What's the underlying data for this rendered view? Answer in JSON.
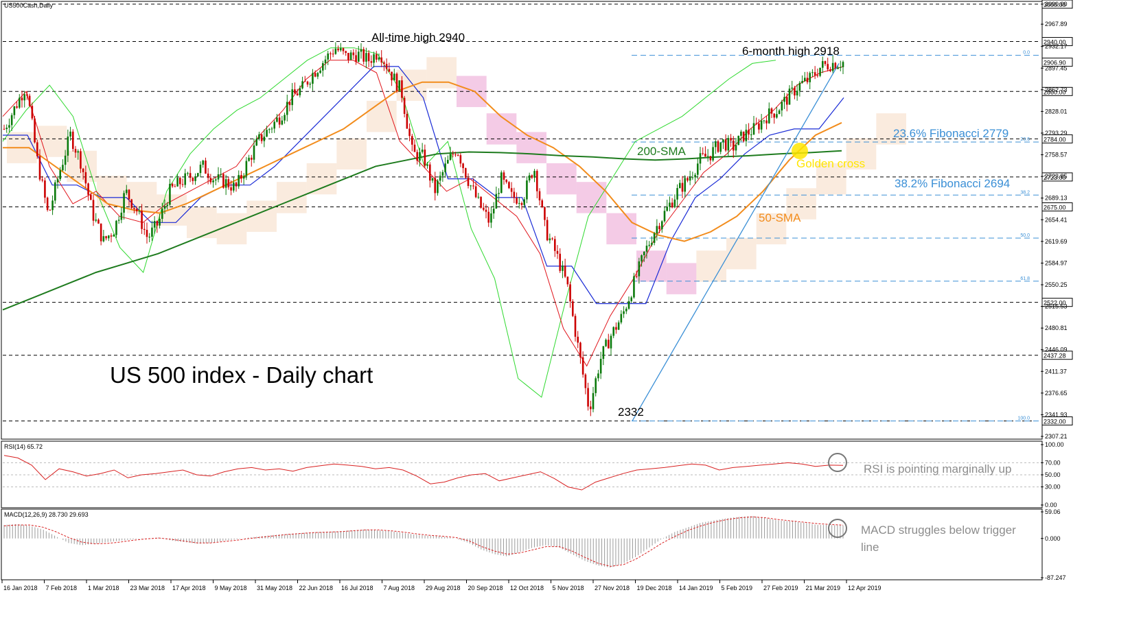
{
  "symbol_label": "US500Cash,Daily",
  "chart_title": "US 500 index - Daily chart",
  "annotations": {
    "all_time_high": "All-time high 2940",
    "six_month_high": "6-month high 2918",
    "low": "2332",
    "fib_236": "23.6% Fibonacci 2779",
    "fib_382": "38.2% Fibonacci 2694",
    "sma200": "200-SMA",
    "sma50": "50-SMA",
    "golden_cross": "Golden cross",
    "rsi_note": "RSI is pointing marginally up",
    "macd_note_line1": "MACD struggles below trigger",
    "macd_note_line2": "line"
  },
  "colors": {
    "price_up": "#0b7a0b",
    "price_down": "#cc0000",
    "sma200": "#1e7b1e",
    "sma50": "#f28c1c",
    "kijun": "#1a2bd6",
    "tenkan": "#e0141b",
    "chikou": "#2fd92f",
    "cloud_bull": "#f2c6a0",
    "cloud_bear": "#e06bb8",
    "fib": "#3a8fd6",
    "trendline": "#3a8fd6",
    "golden_cross": "#ffe600",
    "rsi_line": "#d81f1f",
    "macd_signal": "#d81f1f",
    "macd_hist": "#9a9a9a",
    "annotation_text": "#3a8fd6"
  },
  "chart_data": [
    {
      "type": "candlestick",
      "title": "US 500 index - Daily chart",
      "ylim": [
        2307.21,
        3000.0
      ],
      "y_ticks": [
        "3000.00",
        "2967.89",
        "2932.17",
        "2897.45",
        "2862.73",
        "2828.01",
        "2793.29",
        "2758.57",
        "2723.85",
        "2689.13",
        "2654.41",
        "2619.69",
        "2584.97",
        "2550.25",
        "2515.53",
        "2480.81",
        "2446.09",
        "2411.37",
        "2376.65",
        "2341.93",
        "2307.21"
      ],
      "y_tick_values": [
        3000.0,
        2967.89,
        2932.17,
        2897.45,
        2862.73,
        2828.01,
        2793.29,
        2758.57,
        2723.85,
        2689.13,
        2654.41,
        2619.69,
        2584.97,
        2550.25,
        2515.53,
        2480.81,
        2446.09,
        2411.37,
        2376.65,
        2341.93,
        2307.21
      ],
      "x_ticks": [
        "16 Jan 2018",
        "7 Feb 2018",
        "1 Mar 2018",
        "23 Mar 2018",
        "17 Apr 2018",
        "9 May 2018",
        "31 May 2018",
        "22 Jun 2018",
        "16 Jul 2018",
        "7 Aug 2018",
        "29 Aug 2018",
        "20 Sep 2018",
        "12 Oct 2018",
        "5 Nov 2018",
        "27 Nov 2018",
        "19 Dec 2018",
        "14 Jan 2019",
        "5 Feb 2019",
        "27 Feb 2019",
        "21 Mar 2019",
        "12 Apr 2019"
      ],
      "horizontal_levels": [
        {
          "value": 3000.0,
          "label": "3000.00"
        },
        {
          "value": 2940.0,
          "label": "2940.00"
        },
        {
          "value": 2860.0,
          "label": "2860.00"
        },
        {
          "value": 2784.0,
          "label": "2784.00"
        },
        {
          "value": 2723.0,
          "label": "2723.00"
        },
        {
          "value": 2675.0,
          "label": "2675.00"
        },
        {
          "value": 2522.0,
          "label": "2522.00"
        },
        {
          "value": 2437.28,
          "label": "2437.28"
        },
        {
          "value": 2332.0,
          "label": "2332.00"
        }
      ],
      "current_price": {
        "value": 2906.9,
        "label": "2906.90"
      },
      "fibonacci": [
        {
          "level": "0.0",
          "value": 2918.0
        },
        {
          "level": "23.6",
          "value": 2779.0
        },
        {
          "level": "38.2",
          "value": 2694.0
        },
        {
          "level": "50.0",
          "value": 2625.0
        },
        {
          "level": "61.8",
          "value": 2556.0
        },
        {
          "level": "100.0",
          "value": 2332.0
        }
      ],
      "close_path": [
        2800,
        2835,
        2870,
        2750,
        2660,
        2730,
        2790,
        2745,
        2665,
        2620,
        2640,
        2700,
        2670,
        2625,
        2650,
        2700,
        2715,
        2725,
        2740,
        2720,
        2715,
        2705,
        2745,
        2780,
        2800,
        2820,
        2850,
        2865,
        2890,
        2910,
        2930,
        2915,
        2920,
        2910,
        2925,
        2890,
        2860,
        2760,
        2755,
        2700,
        2740,
        2770,
        2720,
        2680,
        2650,
        2720,
        2690,
        2690,
        2740,
        2640,
        2600,
        2550,
        2450,
        2350,
        2430,
        2470,
        2500,
        2550,
        2600,
        2640,
        2670,
        2700,
        2720,
        2750,
        2760,
        2780,
        2770,
        2790,
        2800,
        2820,
        2830,
        2850,
        2870,
        2880,
        2900,
        2905,
        2907
      ],
      "sma200_path": [
        2510,
        2530,
        2550,
        2570,
        2585,
        2600,
        2620,
        2640,
        2660,
        2680,
        2700,
        2720,
        2740,
        2750,
        2760,
        2763,
        2762,
        2760,
        2757,
        2755,
        2752,
        2750,
        2752,
        2755,
        2757,
        2760,
        2762,
        2765
      ],
      "sma50_path": [
        2770,
        2770,
        2740,
        2710,
        2680,
        2670,
        2665,
        2680,
        2700,
        2720,
        2740,
        2760,
        2780,
        2800,
        2830,
        2860,
        2875,
        2875,
        2860,
        2820,
        2790,
        2770,
        2740,
        2700,
        2650,
        2630,
        2620,
        2635,
        2660,
        2700,
        2750,
        2790,
        2810
      ],
      "kijun_path": [
        2790,
        2790,
        2710,
        2710,
        2690,
        2690,
        2650,
        2650,
        2690,
        2710,
        2710,
        2740,
        2780,
        2820,
        2860,
        2900,
        2900,
        2850,
        2720,
        2720,
        2690,
        2690,
        2580,
        2580,
        2520,
        2520,
        2520,
        2620,
        2690,
        2720,
        2760,
        2790,
        2800,
        2800,
        2850
      ],
      "tenkan_path": [
        2820,
        2860,
        2740,
        2680,
        2700,
        2660,
        2650,
        2680,
        2700,
        2720,
        2740,
        2790,
        2830,
        2880,
        2910,
        2910,
        2890,
        2780,
        2740,
        2700,
        2720,
        2690,
        2660,
        2600,
        2480,
        2420,
        2500,
        2560,
        2630,
        2680,
        2730,
        2760,
        2800,
        2830,
        2870,
        2890,
        2900
      ],
      "chikou_path": [
        2780,
        2830,
        2870,
        2820,
        2700,
        2610,
        2570,
        2700,
        2760,
        2800,
        2830,
        2850,
        2880,
        2910,
        2930,
        2930,
        2920,
        2860,
        2740,
        2780,
        2640,
        2560,
        2400,
        2370,
        2520,
        2660,
        2720,
        2780,
        2800,
        2820,
        2850,
        2880,
        2905,
        2910
      ],
      "cloud_path": [
        2770,
        2780,
        2740,
        2700,
        2690,
        2670,
        2650,
        2640,
        2660,
        2690,
        2720,
        2760,
        2820,
        2870,
        2890,
        2860,
        2800,
        2770,
        2720,
        2690,
        2640,
        2580,
        2560,
        2580,
        2600,
        2640,
        2680,
        2720,
        2760,
        2800,
        2840
      ]
    },
    {
      "type": "line",
      "title": "RSI(14) 65.72",
      "label": "RSI(14) 65.72",
      "ylim": [
        0,
        100
      ],
      "y_ticks": [
        "100.00",
        "70.00",
        "50.00",
        "30.00",
        "0.00"
      ],
      "y_tick_values": [
        100,
        70,
        50,
        30,
        0
      ],
      "levels": [
        70,
        50,
        30
      ],
      "values": [
        82,
        78,
        66,
        42,
        60,
        55,
        48,
        52,
        58,
        45,
        50,
        52,
        55,
        58,
        50,
        48,
        55,
        60,
        62,
        58,
        60,
        56,
        62,
        65,
        68,
        66,
        64,
        60,
        62,
        58,
        48,
        35,
        38,
        45,
        50,
        52,
        40,
        45,
        50,
        55,
        44,
        30,
        25,
        38,
        45,
        52,
        58,
        60,
        62,
        65,
        68,
        66,
        58,
        62,
        64,
        66,
        68,
        70,
        68,
        64,
        66,
        65.72
      ]
    },
    {
      "type": "bar",
      "title": "MACD(12,26,9) 28.730 29.693",
      "label": "MACD(12,26,9) 28.730 29.693",
      "ylim": [
        -87.247,
        59.06
      ],
      "y_ticks": [
        "59.06",
        "0.000",
        "-87.247"
      ],
      "y_tick_values": [
        59.06,
        0.0,
        -87.247
      ],
      "histogram": [
        30,
        32,
        28,
        20,
        5,
        -10,
        -15,
        -12,
        -8,
        -5,
        -2,
        0,
        2,
        -5,
        -8,
        -12,
        -10,
        -5,
        -2,
        2,
        5,
        8,
        10,
        12,
        14,
        15,
        16,
        18,
        20,
        18,
        16,
        12,
        8,
        6,
        4,
        0,
        -10,
        -25,
        -35,
        -40,
        -30,
        -20,
        -15,
        -20,
        -35,
        -50,
        -60,
        -65,
        -55,
        -40,
        -20,
        0,
        15,
        25,
        35,
        40,
        45,
        48,
        50,
        45,
        40,
        38,
        35,
        30,
        30,
        28.73
      ],
      "signal": [
        28,
        30,
        30,
        25,
        15,
        2,
        -8,
        -12,
        -11,
        -8,
        -4,
        -1,
        1,
        -2,
        -6,
        -10,
        -10,
        -7,
        -4,
        0,
        3,
        6,
        9,
        11,
        13,
        14,
        15,
        17,
        19,
        19,
        17,
        14,
        10,
        7,
        5,
        2,
        -5,
        -18,
        -28,
        -35,
        -32,
        -25,
        -18,
        -18,
        -28,
        -42,
        -55,
        -62,
        -58,
        -45,
        -28,
        -10,
        5,
        18,
        28,
        36,
        42,
        46,
        48,
        46,
        42,
        39,
        36,
        33,
        31,
        29.693
      ]
    }
  ]
}
